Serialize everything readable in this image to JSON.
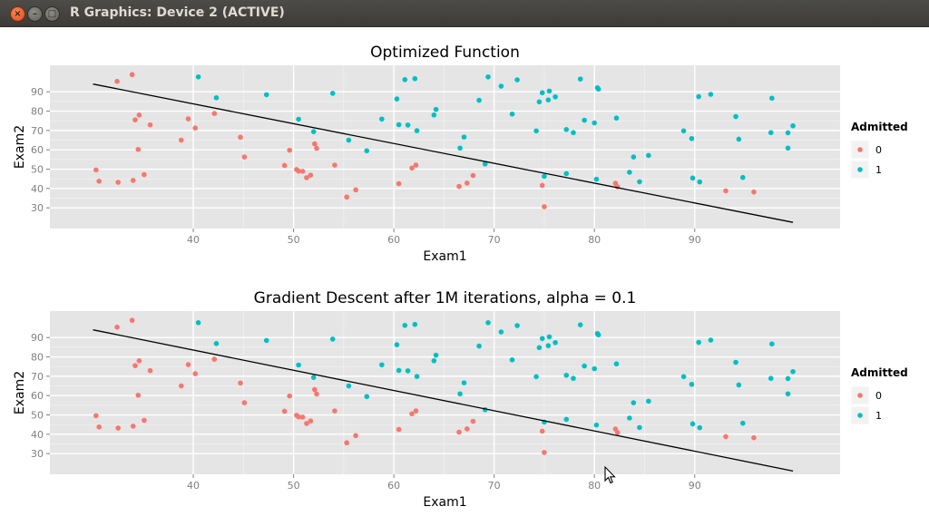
{
  "window": {
    "title": "R Graphics: Device 2 (ACTIVE)",
    "close_glyph": "×",
    "minimize_glyph": "–",
    "maximize_glyph": "□"
  },
  "colors": {
    "class0": "#f8766d",
    "class1": "#00bfc4",
    "panel": "#e5e5e5",
    "grid_major": "#ffffff",
    "grid_minor": "#f2f2f2",
    "boundary": "#000000"
  },
  "legend": {
    "title": "Admitted",
    "items": [
      {
        "label": "0",
        "color": "#f8766d"
      },
      {
        "label": "1",
        "color": "#00bfc4"
      }
    ]
  },
  "points": {
    "admitted_0": [
      [
        30.3,
        49.6
      ],
      [
        30.6,
        43.8
      ],
      [
        32.4,
        95.4
      ],
      [
        32.5,
        43.2
      ],
      [
        33.9,
        98.9
      ],
      [
        34.0,
        44.2
      ],
      [
        34.2,
        75.5
      ],
      [
        34.5,
        60.2
      ],
      [
        34.6,
        78.0
      ],
      [
        35.1,
        47.2
      ],
      [
        35.7,
        72.9
      ],
      [
        38.8,
        65.0
      ],
      [
        39.5,
        76.0
      ],
      [
        40.2,
        71.3
      ],
      [
        42.1,
        78.8
      ],
      [
        44.7,
        66.5
      ],
      [
        45.1,
        56.3
      ],
      [
        49.1,
        51.9
      ],
      [
        49.6,
        59.8
      ],
      [
        50.3,
        49.8
      ],
      [
        50.5,
        49.0
      ],
      [
        50.9,
        48.9
      ],
      [
        51.3,
        45.6
      ],
      [
        51.7,
        46.9
      ],
      [
        52.1,
        63.1
      ],
      [
        52.3,
        60.8
      ],
      [
        54.1,
        52.1
      ],
      [
        55.3,
        35.6
      ],
      [
        56.2,
        39.3
      ],
      [
        60.5,
        42.5
      ],
      [
        61.8,
        50.6
      ],
      [
        62.2,
        52.1
      ],
      [
        66.5,
        41.1
      ],
      [
        67.3,
        42.8
      ],
      [
        67.9,
        46.7
      ],
      [
        74.8,
        41.6
      ],
      [
        75.0,
        30.6
      ],
      [
        82.1,
        42.7
      ],
      [
        82.3,
        40.9
      ],
      [
        93.1,
        38.8
      ],
      [
        95.9,
        38.2
      ]
    ],
    "admitted_1": [
      [
        40.5,
        97.7
      ],
      [
        42.3,
        86.9
      ],
      [
        47.3,
        88.5
      ],
      [
        50.5,
        75.8
      ],
      [
        52.0,
        69.4
      ],
      [
        53.9,
        89.2
      ],
      [
        55.5,
        65.0
      ],
      [
        57.3,
        59.5
      ],
      [
        58.8,
        75.9
      ],
      [
        60.3,
        86.3
      ],
      [
        60.5,
        73.0
      ],
      [
        61.1,
        96.3
      ],
      [
        61.4,
        72.8
      ],
      [
        62.1,
        96.8
      ],
      [
        62.3,
        69.9
      ],
      [
        64.0,
        78.0
      ],
      [
        64.2,
        80.9
      ],
      [
        66.6,
        60.9
      ],
      [
        67.0,
        66.6
      ],
      [
        68.5,
        85.6
      ],
      [
        69.1,
        52.7
      ],
      [
        69.4,
        97.7
      ],
      [
        70.7,
        92.9
      ],
      [
        71.8,
        78.5
      ],
      [
        72.3,
        96.2
      ],
      [
        74.2,
        69.8
      ],
      [
        74.5,
        84.8
      ],
      [
        74.8,
        89.5
      ],
      [
        75.0,
        46.3
      ],
      [
        75.4,
        85.8
      ],
      [
        75.5,
        90.4
      ],
      [
        76.1,
        87.4
      ],
      [
        77.2,
        47.7
      ],
      [
        77.2,
        70.5
      ],
      [
        77.9,
        68.9
      ],
      [
        78.6,
        96.6
      ],
      [
        79.0,
        75.3
      ],
      [
        80.0,
        73.9
      ],
      [
        80.2,
        44.8
      ],
      [
        80.3,
        92.1
      ],
      [
        80.4,
        91.4
      ],
      [
        82.2,
        76.4
      ],
      [
        83.5,
        48.4
      ],
      [
        83.9,
        56.3
      ],
      [
        84.5,
        43.5
      ],
      [
        85.4,
        57.1
      ],
      [
        88.9,
        69.8
      ],
      [
        89.7,
        65.8
      ],
      [
        89.8,
        45.4
      ],
      [
        90.4,
        87.5
      ],
      [
        90.5,
        43.4
      ],
      [
        91.6,
        88.7
      ],
      [
        94.1,
        77.2
      ],
      [
        94.4,
        65.5
      ],
      [
        94.8,
        45.7
      ],
      [
        97.6,
        68.9
      ],
      [
        97.7,
        86.7
      ],
      [
        99.3,
        68.8
      ],
      [
        99.3,
        60.9
      ],
      [
        99.8,
        72.4
      ]
    ]
  },
  "chart_data": [
    {
      "type": "scatter",
      "title": "Optimized Function",
      "xlabel": "Exam1",
      "ylabel": "Exam2",
      "xlim": [
        25.7,
        104.5
      ],
      "ylim": [
        19.3,
        103.7
      ],
      "xticks": [
        40,
        50,
        60,
        70,
        80,
        90
      ],
      "yticks": [
        30,
        40,
        50,
        60,
        70,
        80,
        90
      ],
      "grid": true,
      "legend_position": "right",
      "series": [
        {
          "name": "0",
          "points_ref": "admitted_0"
        },
        {
          "name": "1",
          "points_ref": "admitted_1"
        }
      ],
      "line": {
        "x": [
          30.0,
          99.8
        ],
        "y": [
          94.0,
          22.5
        ]
      }
    },
    {
      "type": "scatter",
      "title": "Gradient Descent after 1M iterations, alpha = 0.1",
      "xlabel": "Exam1",
      "ylabel": "Exam2",
      "xlim": [
        25.7,
        104.5
      ],
      "ylim": [
        19.3,
        103.7
      ],
      "xticks": [
        40,
        50,
        60,
        70,
        80,
        90
      ],
      "yticks": [
        30,
        40,
        50,
        60,
        70,
        80,
        90
      ],
      "grid": true,
      "legend_position": "right",
      "series": [
        {
          "name": "0",
          "points_ref": "admitted_0"
        },
        {
          "name": "1",
          "points_ref": "admitted_1"
        }
      ],
      "line": {
        "x": [
          30.0,
          99.8
        ],
        "y": [
          94.0,
          21.0
        ]
      }
    }
  ]
}
